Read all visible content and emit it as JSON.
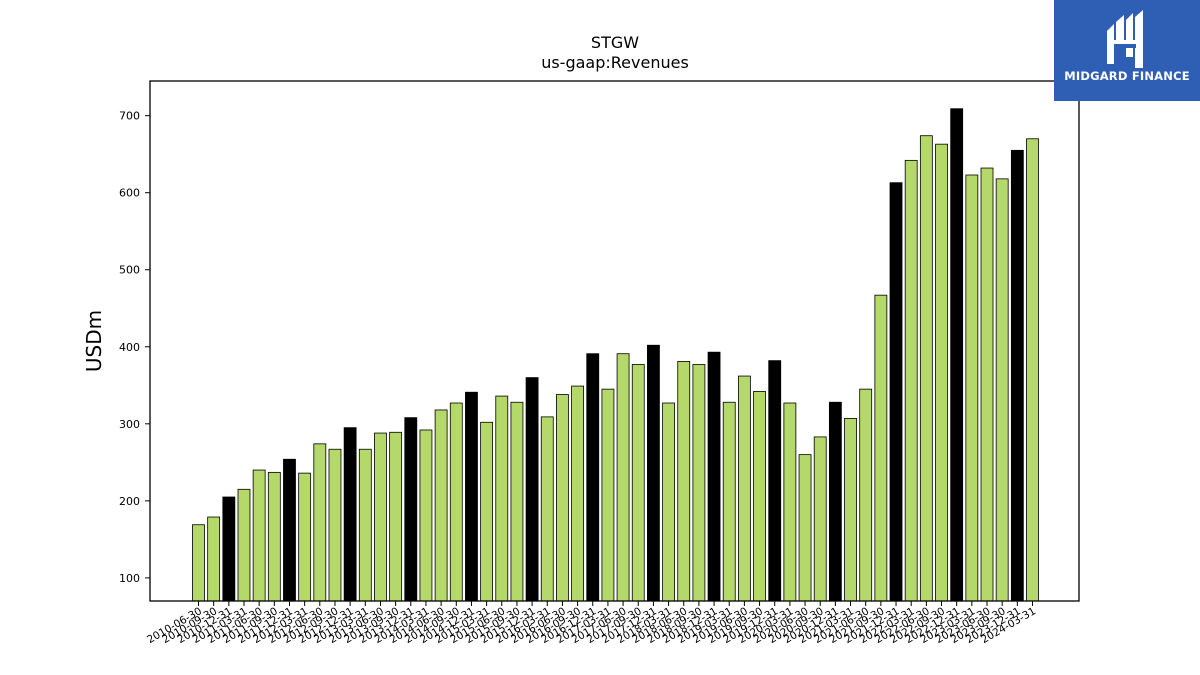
{
  "chart_data": {
    "type": "bar",
    "title": "STGW",
    "subtitle": "us-gaap:Revenues",
    "ylabel": "USDm",
    "xlabel": "",
    "ylim": [
      70,
      745
    ],
    "yticks": [
      100,
      200,
      300,
      400,
      500,
      600,
      700
    ],
    "grid": false,
    "colors": {
      "regular": "#b5d86b",
      "highlight": "#000000",
      "edge": "#000000"
    },
    "categories": [
      "2010-06-30",
      "2010-09-30",
      "2010-12-31",
      "2011-03-31",
      "2011-06-30",
      "2011-09-30",
      "2011-12-31",
      "2012-03-31",
      "2012-06-30",
      "2012-09-30",
      "2012-12-31",
      "2013-03-31",
      "2013-06-30",
      "2013-09-30",
      "2013-12-31",
      "2014-03-31",
      "2014-06-30",
      "2014-09-30",
      "2014-12-31",
      "2015-03-31",
      "2015-06-30",
      "2015-09-30",
      "2015-12-31",
      "2016-03-31",
      "2016-06-30",
      "2016-09-30",
      "2016-12-31",
      "2017-03-31",
      "2017-06-30",
      "2017-09-30",
      "2017-12-31",
      "2018-03-31",
      "2018-06-30",
      "2018-09-30",
      "2018-12-31",
      "2019-03-31",
      "2019-06-30",
      "2019-09-30",
      "2019-12-31",
      "2020-03-31",
      "2020-06-30",
      "2020-09-30",
      "2020-12-31",
      "2021-03-31",
      "2021-06-30",
      "2021-09-30",
      "2021-12-31",
      "2022-03-31",
      "2022-06-30",
      "2022-09-30",
      "2022-12-31",
      "2023-03-31",
      "2023-06-30",
      "2023-09-30",
      "2023-12-31",
      "2024-03-31"
    ],
    "values": [
      169,
      179,
      205,
      215,
      240,
      237,
      254,
      236,
      274,
      267,
      295,
      267,
      288,
      289,
      308,
      292,
      318,
      327,
      341,
      302,
      336,
      328,
      360,
      309,
      338,
      349,
      391,
      345,
      391,
      377,
      402,
      327,
      381,
      377,
      393,
      328,
      362,
      342,
      382,
      327,
      260,
      283,
      328,
      307,
      345,
      467,
      613,
      642,
      674,
      663,
      709,
      623,
      632,
      618,
      655,
      670
    ],
    "highlight": [
      false,
      false,
      true,
      false,
      false,
      false,
      true,
      false,
      false,
      false,
      true,
      false,
      false,
      false,
      true,
      false,
      false,
      false,
      true,
      false,
      false,
      false,
      true,
      false,
      false,
      false,
      true,
      false,
      false,
      false,
      true,
      false,
      false,
      false,
      true,
      false,
      false,
      false,
      true,
      false,
      false,
      false,
      true,
      false,
      false,
      false,
      true,
      false,
      false,
      false,
      true,
      false,
      false,
      false,
      true,
      false
    ]
  },
  "logo": {
    "text": "MIDGARD FINANCE",
    "icon": "midgard-logo-icon"
  }
}
